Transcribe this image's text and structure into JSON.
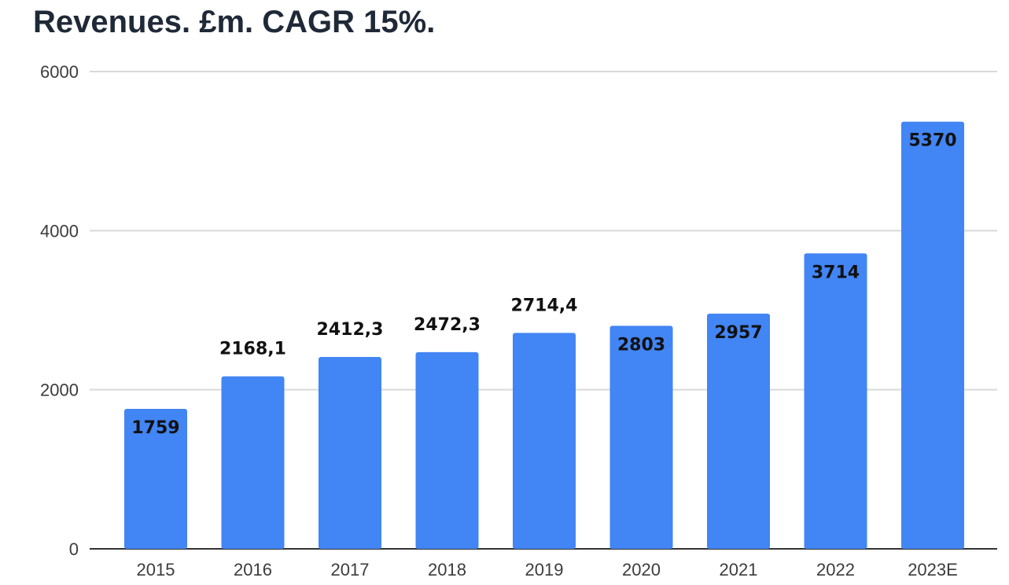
{
  "chart_data": {
    "type": "bar",
    "title": "Revenues. £m. CAGR 15%.",
    "categories": [
      "2015",
      "2016",
      "2017",
      "2018",
      "2019",
      "2020",
      "2021",
      "2022",
      "2023E"
    ],
    "values": [
      1759,
      2168.1,
      2412.3,
      2472.3,
      2714.4,
      2803,
      2957,
      3714,
      5370
    ],
    "data_labels": [
      "1759",
      "2168,1",
      "2412,3",
      "2472,3",
      "2714,4",
      "2803",
      "2957",
      "3714",
      "5370"
    ],
    "label_placement": [
      "inside",
      "outside",
      "outside",
      "outside",
      "outside",
      "inside",
      "inside",
      "inside",
      "inside"
    ],
    "y_ticks": [
      0,
      2000,
      4000,
      6000
    ],
    "ylim": [
      0,
      6000
    ],
    "xlabel": "",
    "ylabel": "",
    "grid": true,
    "legend": "none",
    "colors": {
      "bar": "#4285f4",
      "grid": "#d9d9d9",
      "axis": "#333333",
      "title": "#1f2937"
    }
  }
}
